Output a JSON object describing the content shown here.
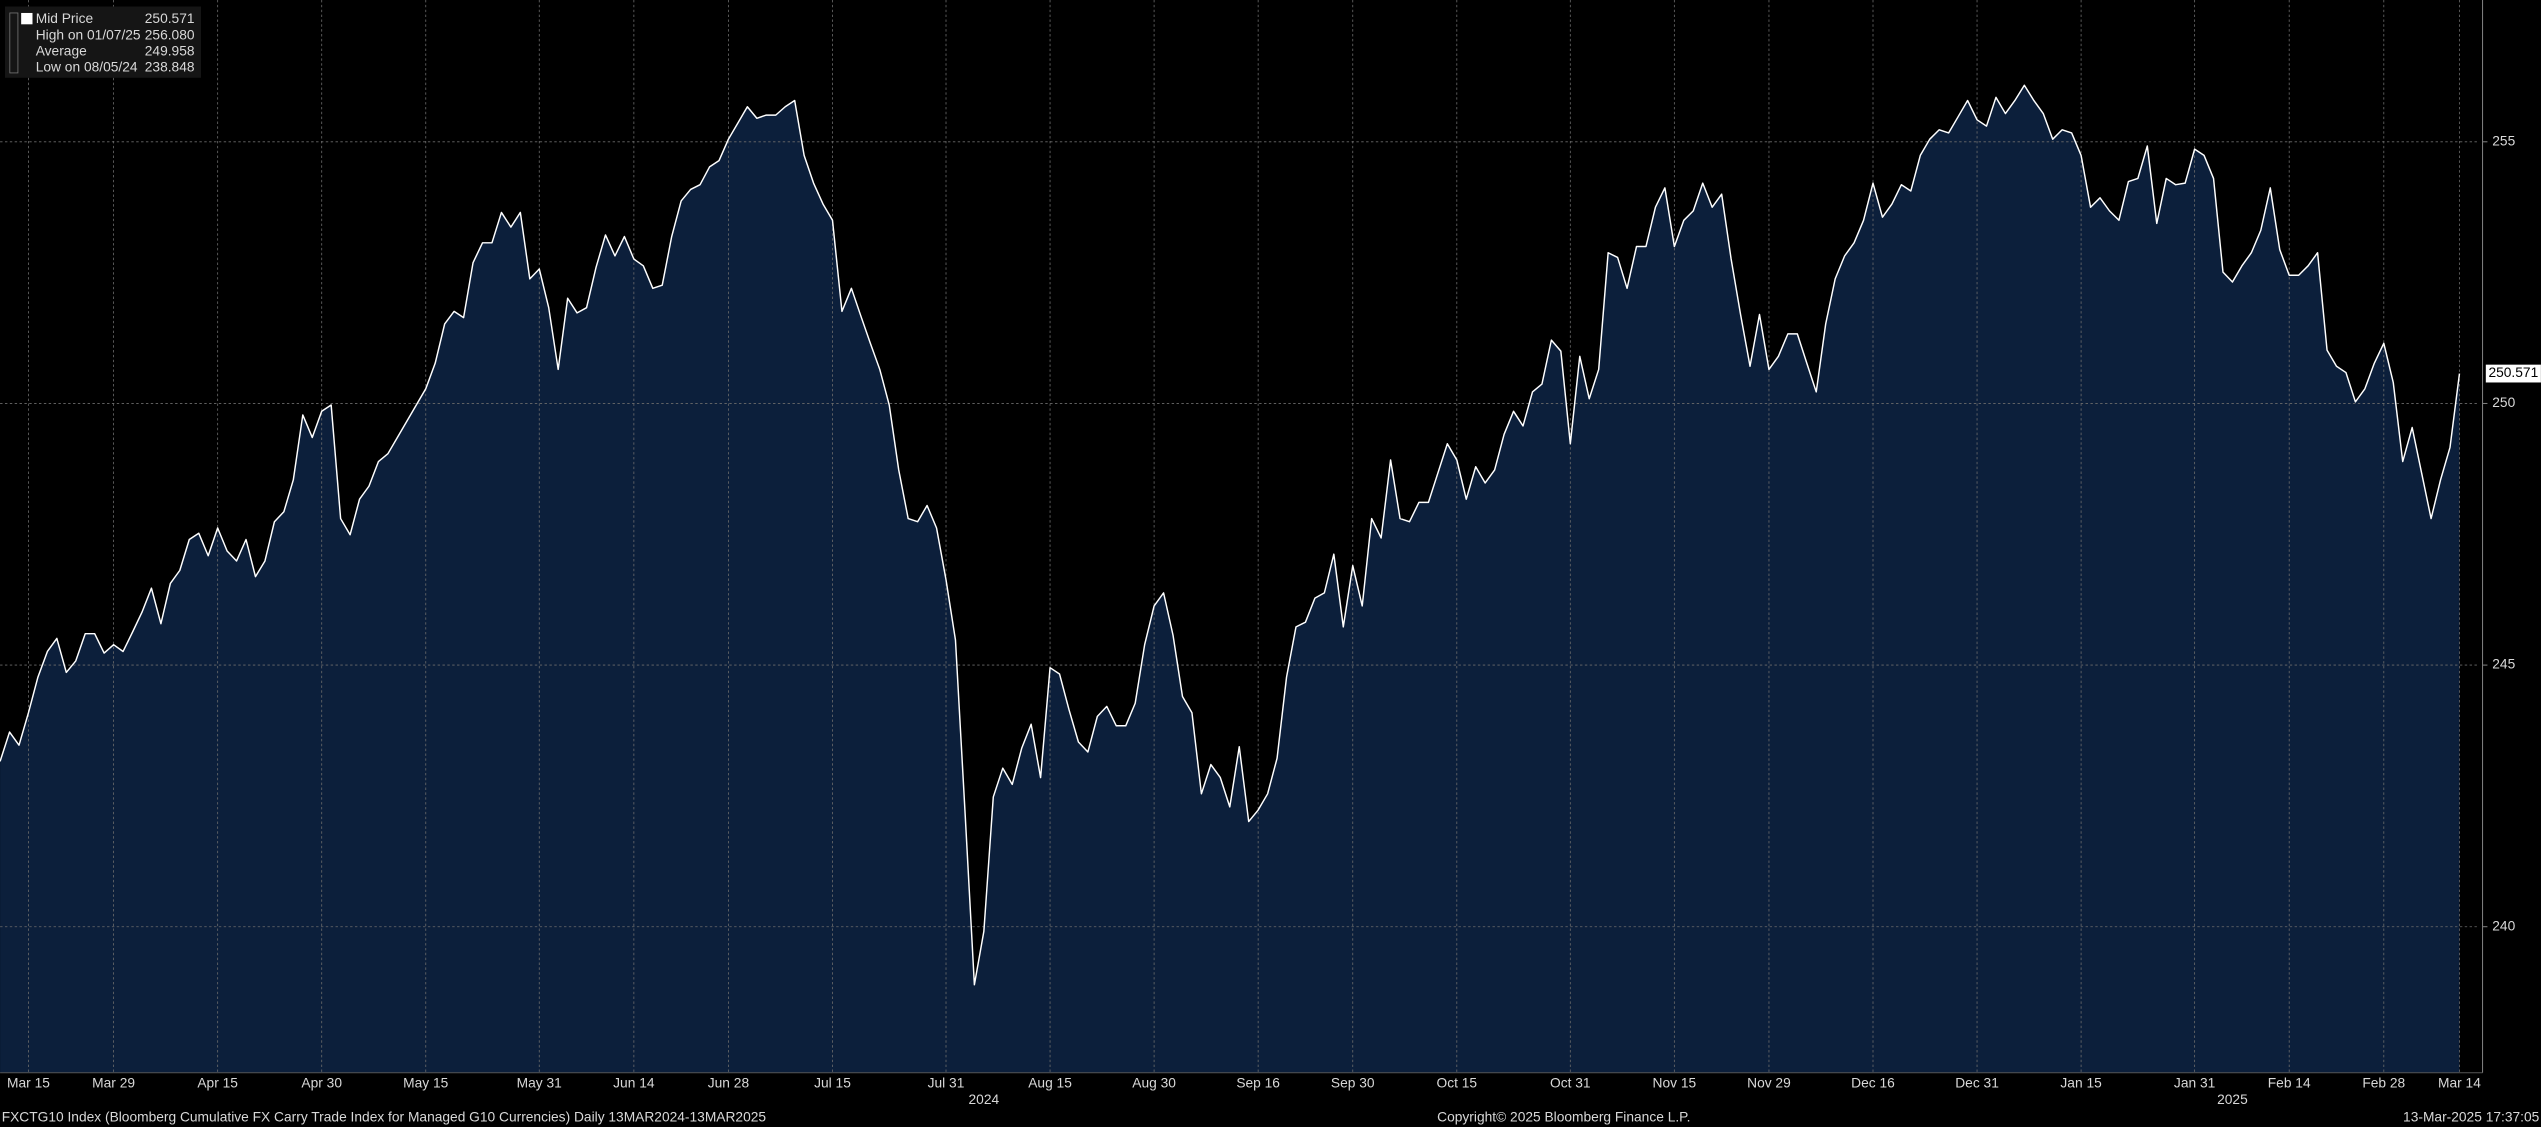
{
  "chart_data": {
    "type": "area",
    "stats": [
      {
        "label": "Mid Price",
        "value": "250.571"
      },
      {
        "label": "High on 01/07/25",
        "value": "256.080"
      },
      {
        "label": "Average",
        "value": "249.958"
      },
      {
        "label": "Low on 08/05/24",
        "value": "238.848"
      }
    ],
    "values": [
      243.16,
      243.72,
      243.47,
      244.09,
      244.77,
      245.26,
      245.51,
      244.86,
      245.08,
      245.6,
      245.6,
      245.23,
      245.39,
      245.26,
      245.63,
      246.01,
      246.47,
      245.79,
      246.56,
      246.81,
      247.4,
      247.52,
      247.09,
      247.62,
      247.18,
      246.99,
      247.4,
      246.69,
      246.99,
      247.74,
      247.93,
      248.54,
      249.78,
      249.35,
      249.85,
      249.97,
      247.8,
      247.49,
      248.17,
      248.42,
      248.89,
      249.04,
      249.35,
      249.66,
      249.97,
      250.28,
      250.77,
      251.52,
      251.76,
      251.64,
      252.69,
      253.07,
      253.07,
      253.65,
      253.37,
      253.65,
      252.38,
      252.57,
      251.83,
      250.65,
      252.01,
      251.73,
      251.83,
      252.6,
      253.22,
      252.82,
      253.19,
      252.76,
      252.63,
      252.2,
      252.26,
      253.19,
      253.87,
      254.09,
      254.18,
      254.52,
      254.64,
      255.05,
      255.36,
      255.67,
      255.45,
      255.51,
      255.51,
      255.67,
      255.79,
      254.74,
      254.21,
      253.81,
      253.5,
      251.76,
      252.2,
      251.67,
      251.15,
      250.65,
      249.97,
      248.73,
      247.8,
      247.74,
      248.05,
      247.62,
      246.63,
      245.48,
      242.23,
      238.89,
      239.91,
      242.48,
      243.03,
      242.72,
      243.41,
      243.87,
      242.85,
      244.95,
      244.83,
      244.15,
      243.53,
      243.34,
      244.02,
      244.21,
      243.84,
      243.84,
      244.27,
      245.39,
      246.13,
      246.38,
      245.57,
      244.4,
      244.09,
      242.54,
      243.1,
      242.85,
      242.29,
      243.44,
      242.01,
      242.23,
      242.54,
      243.22,
      244.77,
      245.73,
      245.82,
      246.28,
      246.38,
      247.12,
      245.73,
      246.9,
      246.13,
      247.8,
      247.43,
      248.92,
      247.8,
      247.74,
      248.11,
      248.11,
      248.67,
      249.23,
      248.92,
      248.17,
      248.79,
      248.48,
      248.73,
      249.41,
      249.85,
      249.57,
      250.22,
      250.37,
      251.21,
      251.0,
      249.23,
      250.9,
      250.09,
      250.65,
      252.88,
      252.79,
      252.2,
      253.0,
      253.0,
      253.75,
      254.12,
      253.0,
      253.5,
      253.68,
      254.21,
      253.75,
      254.0,
      252.76,
      251.7,
      250.71,
      251.7,
      250.65,
      250.9,
      251.33,
      251.33,
      250.77,
      250.22,
      251.52,
      252.38,
      252.82,
      253.07,
      253.5,
      254.21,
      253.56,
      253.81,
      254.18,
      254.06,
      254.74,
      255.05,
      255.23,
      255.17,
      255.48,
      255.79,
      255.42,
      255.3,
      255.85,
      255.54,
      255.79,
      256.08,
      255.79,
      255.54,
      255.05,
      255.23,
      255.17,
      254.74,
      253.75,
      253.93,
      253.68,
      253.5,
      254.24,
      254.3,
      254.92,
      253.44,
      254.3,
      254.18,
      254.21,
      254.86,
      254.74,
      254.3,
      252.51,
      252.32,
      252.63,
      252.88,
      253.31,
      254.12,
      252.94,
      252.45,
      252.45,
      252.63,
      252.88,
      251.02,
      250.71,
      250.59,
      250.03,
      250.28,
      250.77,
      251.15,
      250.4,
      248.89,
      249.54,
      248.67,
      247.8,
      248.54,
      249.16,
      250.571
    ],
    "color": "#ffffff",
    "area_color": "#0c1f3b",
    "xlim": [
      0,
      262.1
    ],
    "ylim": [
      237.21,
      257.71
    ],
    "yticks": [
      240,
      245,
      250,
      255
    ],
    "xticks": [
      {
        "value": 3,
        "label": "Mar 15"
      },
      {
        "value": 12,
        "label": "Mar 29"
      },
      {
        "value": 23,
        "label": "Apr 15"
      },
      {
        "value": 34,
        "label": "Apr 30"
      },
      {
        "value": 45,
        "label": "May 15"
      },
      {
        "value": 57,
        "label": "May 31"
      },
      {
        "value": 67,
        "label": "Jun 14"
      },
      {
        "value": 77,
        "label": "Jun 28"
      },
      {
        "value": 88,
        "label": "Jul 15"
      },
      {
        "value": 100,
        "label": "Jul 31"
      },
      {
        "value": 111,
        "label": "Aug 15"
      },
      {
        "value": 122,
        "label": "Aug 30"
      },
      {
        "value": 133,
        "label": "Sep 16"
      },
      {
        "value": 143,
        "label": "Sep 30"
      },
      {
        "value": 154,
        "label": "Oct 15"
      },
      {
        "value": 166,
        "label": "Oct 31"
      },
      {
        "value": 177,
        "label": "Nov 15"
      },
      {
        "value": 187,
        "label": "Nov 29"
      },
      {
        "value": 198,
        "label": "Dec 16"
      },
      {
        "value": 209,
        "label": "Dec 31"
      },
      {
        "value": 220,
        "label": "Jan 15"
      },
      {
        "value": 232,
        "label": "Jan 31"
      },
      {
        "value": 242,
        "label": "Feb 14"
      },
      {
        "value": 252,
        "label": "Feb 28"
      },
      {
        "value": 260,
        "label": "Mar 14"
      }
    ],
    "year_ticks": [
      {
        "value": 104,
        "label": "2024"
      },
      {
        "value": 236,
        "label": "2025"
      }
    ],
    "grid": true,
    "footer_left": "FXCTG10 Index (Bloomberg Cumulative FX Carry Trade Index for Managed G10 Currencies)  Daily 13MAR2024-13MAR2025",
    "footer_center": "Copyright© 2025 Bloomberg Finance L.P.",
    "footer_right": "13-Mar-2025 17:37:05"
  }
}
